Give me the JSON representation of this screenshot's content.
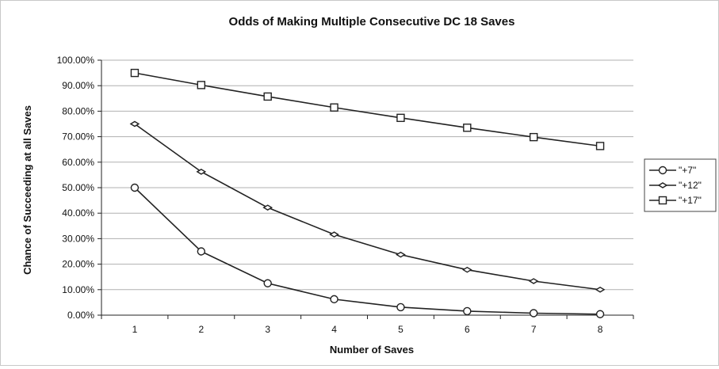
{
  "chart_data": {
    "type": "line",
    "title": "Odds of Making Multiple Consecutive DC 18 Saves",
    "xlabel": "Number of Saves",
    "ylabel": "Chance of Succeeding at all Saves",
    "categories": [
      "1",
      "2",
      "3",
      "4",
      "5",
      "6",
      "7",
      "8"
    ],
    "y_ticks": [
      "0.00%",
      "10.00%",
      "20.00%",
      "30.00%",
      "40.00%",
      "50.00%",
      "60.00%",
      "70.00%",
      "80.00%",
      "90.00%",
      "100.00%"
    ],
    "ylim": [
      0,
      100
    ],
    "grid": true,
    "legend_position": "right",
    "series": [
      {
        "name": "\"+7\"",
        "marker": "circle",
        "values": [
          50,
          25,
          12.5,
          6.25,
          3.13,
          1.56,
          0.78,
          0.39
        ]
      },
      {
        "name": "\"+12\"",
        "marker": "diamond",
        "values": [
          75,
          56.25,
          42.19,
          31.64,
          23.73,
          17.8,
          13.35,
          10.01
        ]
      },
      {
        "name": "\"+17\"",
        "marker": "square",
        "values": [
          95,
          90.25,
          85.74,
          81.45,
          77.38,
          73.51,
          69.83,
          66.34
        ]
      }
    ],
    "line_color": "#222222",
    "grid_color": "#b0b0b0"
  }
}
